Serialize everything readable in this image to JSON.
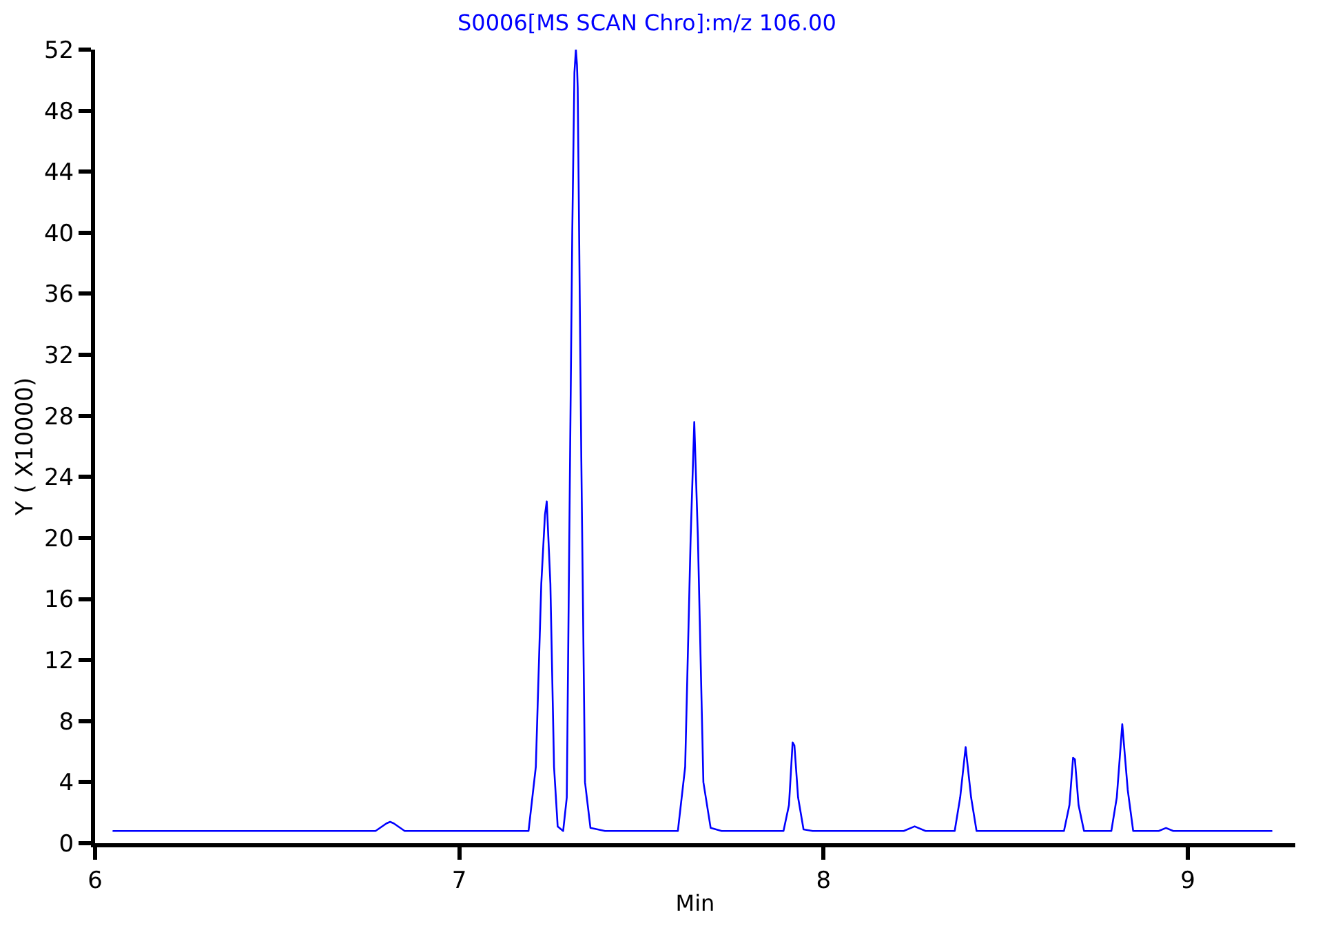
{
  "chart_data": {
    "type": "line",
    "title": "S0006[MS SCAN Chro]:m/z 106.00",
    "xlabel": "Min",
    "ylabel": "Y ( X10000)",
    "xlim": [
      6,
      9.295
    ],
    "xticks": [
      6,
      7,
      8,
      9
    ],
    "ylim": [
      0,
      52
    ],
    "yticks": [
      0,
      4,
      8,
      12,
      16,
      20,
      24,
      28,
      32,
      36,
      40,
      44,
      48,
      52
    ],
    "marker": "none",
    "line_style": "solid",
    "series": [
      {
        "color": "#0000ff",
        "x": [
          6.05,
          6.77,
          6.8,
          6.81,
          6.82,
          6.85,
          7.19,
          7.21,
          7.225,
          7.235,
          7.24,
          7.25,
          7.26,
          7.27,
          7.285,
          7.295,
          7.31,
          7.316,
          7.32,
          7.323,
          7.325,
          7.335,
          7.345,
          7.36,
          7.4,
          7.6,
          7.62,
          7.635,
          7.645,
          7.655,
          7.67,
          7.69,
          7.72,
          7.89,
          7.905,
          7.915,
          7.92,
          7.93,
          7.945,
          7.97,
          8.22,
          8.25,
          8.28,
          8.36,
          8.375,
          8.39,
          8.405,
          8.42,
          8.66,
          8.675,
          8.685,
          8.69,
          8.7,
          8.715,
          8.79,
          8.805,
          8.82,
          8.835,
          8.85,
          8.92,
          8.94,
          8.96,
          9.23
        ],
        "values": [
          0.8,
          0.8,
          1.3,
          1.4,
          1.3,
          0.8,
          0.8,
          5,
          17,
          21.5,
          22.4,
          17,
          5,
          1.1,
          0.8,
          3,
          40,
          50.5,
          52,
          51,
          49.5,
          25,
          4,
          1.0,
          0.8,
          0.8,
          5,
          20,
          27.6,
          20,
          4,
          1.0,
          0.8,
          0.8,
          2.5,
          6.6,
          6.4,
          3,
          0.9,
          0.8,
          0.8,
          1.1,
          0.8,
          0.8,
          3,
          6.3,
          3,
          0.8,
          0.8,
          2.5,
          5.6,
          5.5,
          2.5,
          0.8,
          0.8,
          3,
          7.8,
          3.5,
          0.8,
          0.8,
          1.0,
          0.8,
          0.8
        ]
      }
    ]
  }
}
